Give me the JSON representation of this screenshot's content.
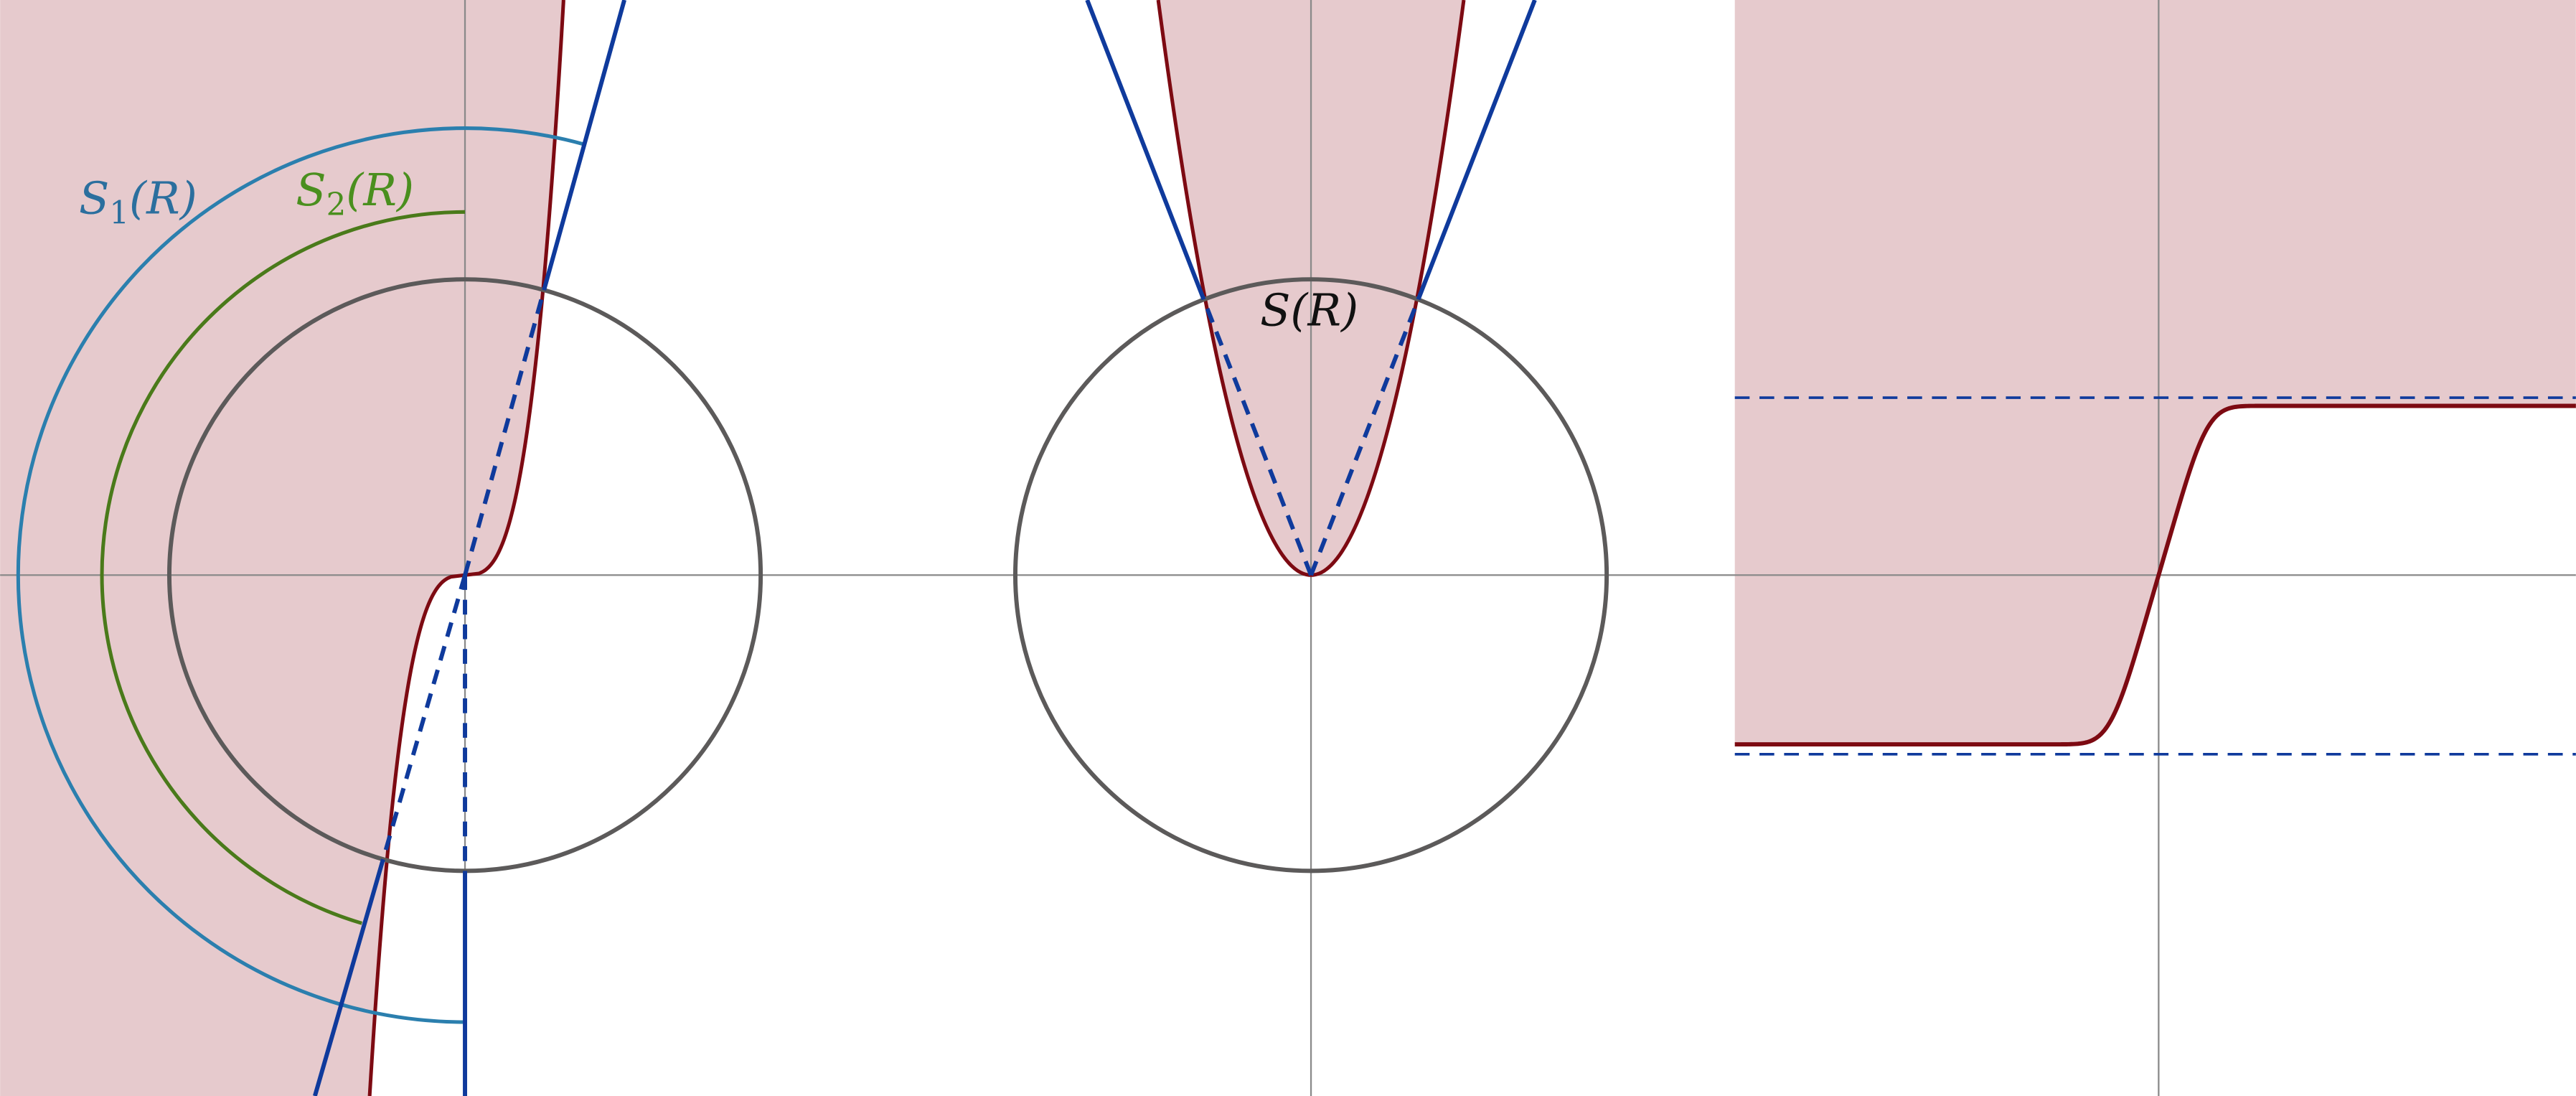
{
  "labels": [
    {
      "symbol": "S",
      "subscript": "1",
      "argument": "(R)"
    },
    {
      "symbol": "S",
      "subscript": "2",
      "argument": "(R)"
    },
    {
      "symbol": "S",
      "argument": "(R)"
    }
  ]
}
